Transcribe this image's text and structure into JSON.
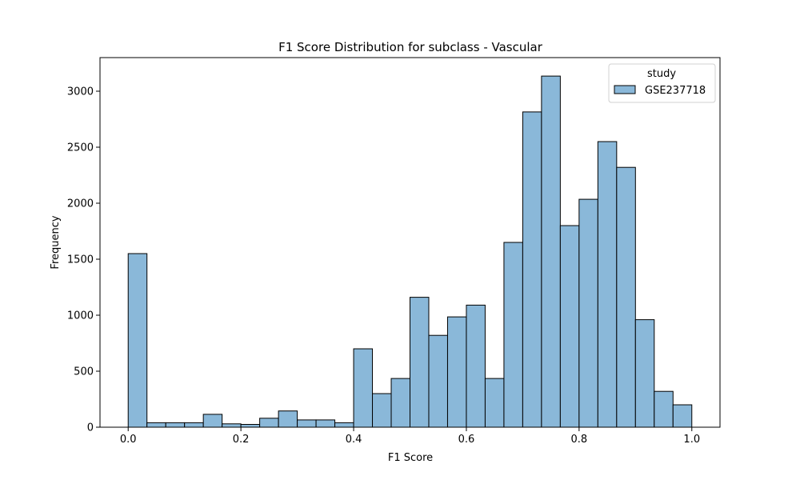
{
  "chart_data": {
    "type": "bar",
    "title": "F1 Score Distribution for subclass - Vascular",
    "xlabel": "F1 Score",
    "ylabel": "Frequency",
    "xlim": [
      -0.05,
      1.05
    ],
    "ylim": [
      0,
      3300
    ],
    "xticks": [
      0.0,
      0.2,
      0.4,
      0.6,
      0.8,
      1.0
    ],
    "xtick_labels": [
      "0.0",
      "0.2",
      "0.4",
      "0.6",
      "0.8",
      "1.0"
    ],
    "yticks": [
      0,
      500,
      1000,
      1500,
      2000,
      2500,
      3000
    ],
    "ytick_labels": [
      "0",
      "500",
      "1000",
      "1500",
      "2000",
      "2500",
      "3000"
    ],
    "bin_range": [
      0.0,
      1.0
    ],
    "bins": 30,
    "values": [
      1550,
      40,
      40,
      40,
      115,
      30,
      25,
      80,
      145,
      65,
      65,
      40,
      700,
      300,
      435,
      1160,
      820,
      985,
      1090,
      435,
      1650,
      2815,
      3135,
      1800,
      2035,
      2550,
      2320,
      960,
      320,
      200
    ],
    "bar_color": "#8ab8d9",
    "edge_color": "#000000",
    "legend": {
      "title": "study",
      "placement": "top-right",
      "entries": [
        {
          "name": "GSE237718",
          "color": "#8ab8d9"
        }
      ]
    },
    "grid": false
  }
}
